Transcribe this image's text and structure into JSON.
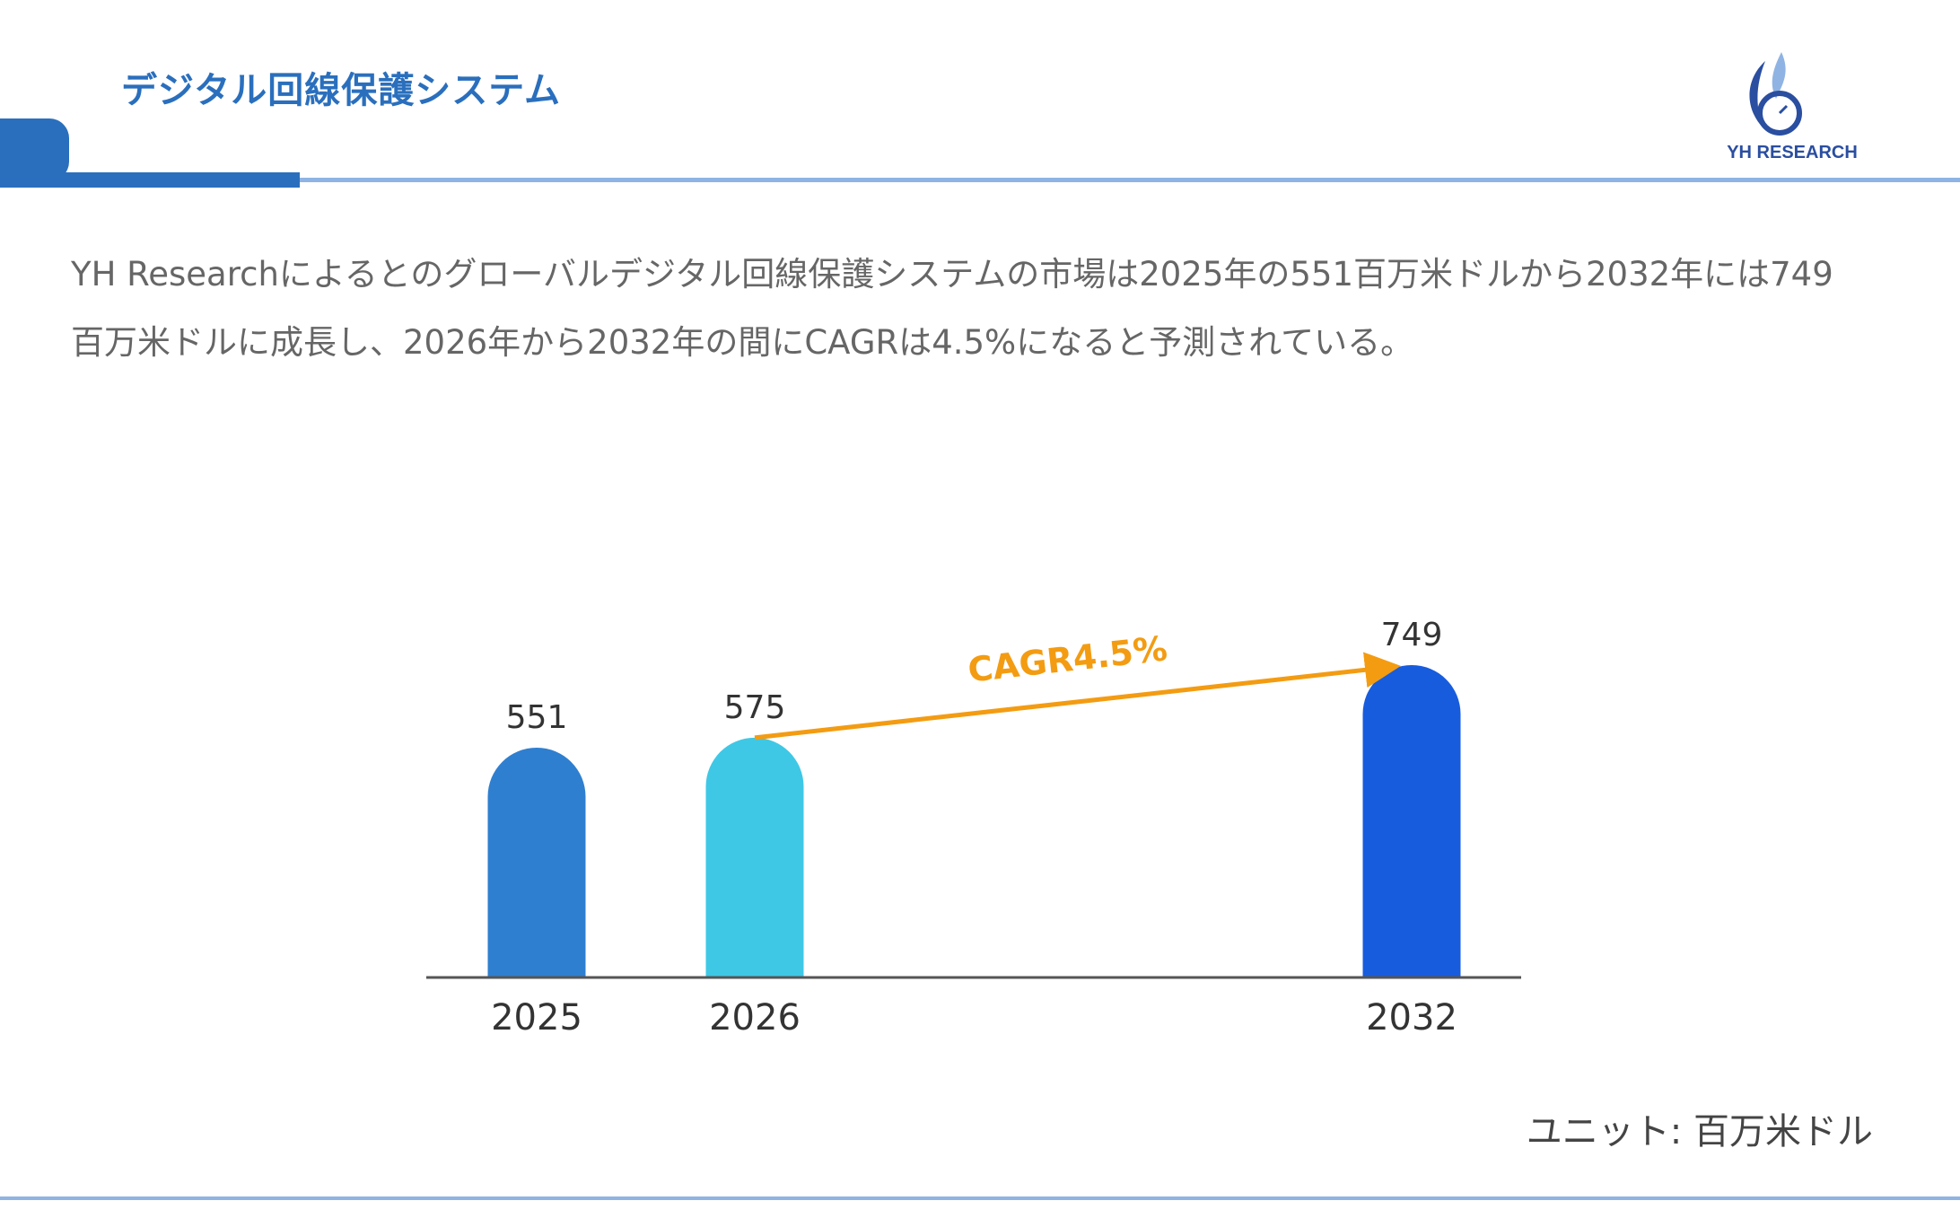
{
  "header": {
    "title": "デジタル回線保護システム",
    "logo_text": "YH RESEARCH"
  },
  "description": "YH Researchによるとのグローバルデジタル回線保護システムの市場は2025年の551百万米ドルから2032年には749百万米ドルに成長し、2026年から2032年の間にCAGRは4.5%になると予測されている。",
  "unit_label": "ユニット: 百万米ドル",
  "colors": {
    "title": "#2a6fbd",
    "rule": "#8fb4e3",
    "cagr_arrow": "#f39c12"
  },
  "chart_data": {
    "type": "bar",
    "categories": [
      "2025",
      "2026",
      "2032"
    ],
    "values": [
      551,
      575,
      749
    ],
    "data_labels": [
      "551",
      "575",
      "749"
    ],
    "bar_colors": [
      "#2f7fd0",
      "#3ec8e6",
      "#185cde"
    ],
    "ylim": [
      0,
      749
    ],
    "grid": false,
    "annotation": {
      "text": "CAGR4.5%",
      "from": "2026",
      "to": "2032"
    }
  }
}
